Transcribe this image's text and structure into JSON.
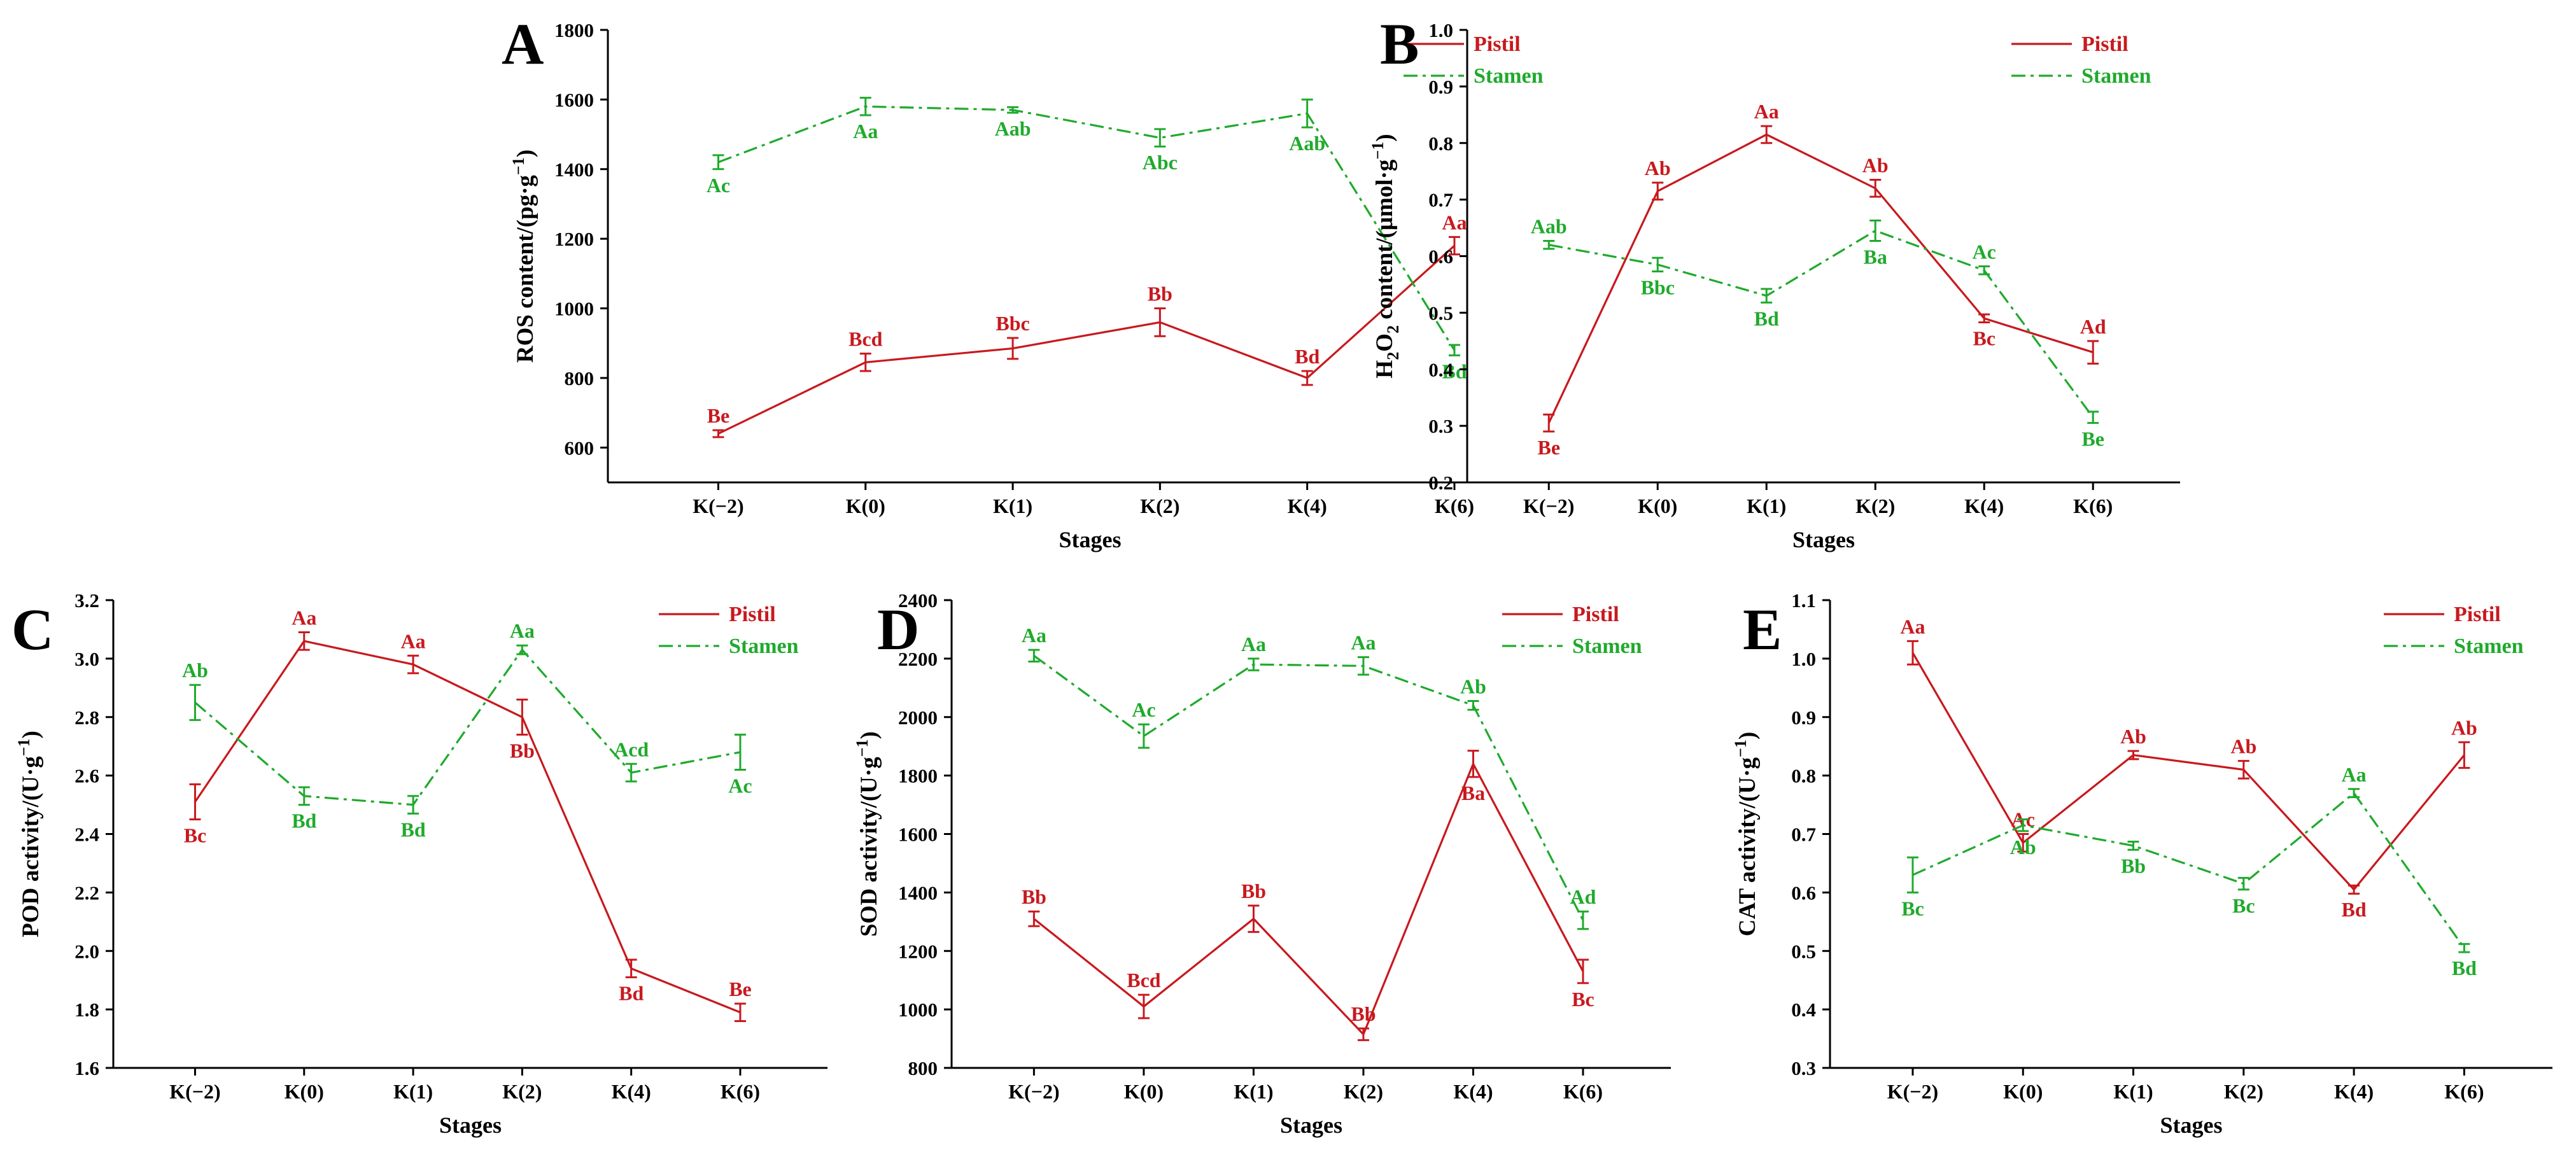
{
  "colors": {
    "pistil": "#c8191e",
    "stamen": "#1faa2c",
    "axis": "#000000"
  },
  "chart_data": [
    {
      "panel": "A",
      "type": "line",
      "categories": [
        "K(−2)",
        "K(0)",
        "K(1)",
        "K(2)",
        "K(4)",
        "K(6)"
      ],
      "xlabel": "Stages",
      "ylabel": "ROS content/(pg·g",
      "ylabel_sup": "−1",
      "ylabel_end": ")",
      "ylim": [
        500,
        1800
      ],
      "yticks": [
        600,
        800,
        1000,
        1200,
        1400,
        1600,
        1800
      ],
      "tick_decimals": 0,
      "legend": "top-right",
      "series": [
        {
          "name": "Pistil",
          "values": [
            640,
            845,
            885,
            960,
            800,
            1180
          ],
          "errors": [
            10,
            25,
            30,
            40,
            20,
            25
          ],
          "labels": [
            "Be",
            "Bcd",
            "Bbc",
            "Bb",
            "Bd",
            "Aa"
          ],
          "label_pos": [
            "above",
            "above",
            "above",
            "above",
            "above",
            "above"
          ]
        },
        {
          "name": "Stamen",
          "values": [
            1420,
            1580,
            1570,
            1490,
            1560,
            880
          ],
          "errors": [
            20,
            25,
            8,
            25,
            40,
            15
          ],
          "labels": [
            "Ac",
            "Aa",
            "Aab",
            "Abc",
            "Aab",
            "Bd"
          ],
          "label_pos": [
            "below",
            "below",
            "below",
            "below",
            "below",
            "below"
          ]
        }
      ]
    },
    {
      "panel": "B",
      "type": "line",
      "categories": [
        "K(−2)",
        "K(0)",
        "K(1)",
        "K(2)",
        "K(4)",
        "K(6)"
      ],
      "xlabel": "Stages",
      "ylabel": "H",
      "ylabel_sub": "2",
      "ylabel_mid": "O",
      "ylabel_sub2": "2",
      "ylabel_rest": " content/(μmol·g",
      "ylabel_sup": "−1",
      "ylabel_end": ")",
      "ylim": [
        0.2,
        1.0
      ],
      "yticks": [
        0.2,
        0.3,
        0.4,
        0.5,
        0.6,
        0.7,
        0.8,
        0.9,
        1.0
      ],
      "tick_decimals": 1,
      "legend": "top-right",
      "series": [
        {
          "name": "Pistil",
          "values": [
            0.305,
            0.715,
            0.815,
            0.72,
            0.49,
            0.43
          ],
          "errors": [
            0.015,
            0.015,
            0.015,
            0.015,
            0.007,
            0.02
          ],
          "labels": [
            "Be",
            "Ab",
            "Aa",
            "Ab",
            "Bc",
            "Ad"
          ],
          "label_pos": [
            "below",
            "above",
            "above",
            "above",
            "below",
            "above"
          ]
        },
        {
          "name": "Stamen",
          "values": [
            0.62,
            0.585,
            0.53,
            0.645,
            0.575,
            0.315
          ],
          "errors": [
            0.007,
            0.012,
            0.012,
            0.018,
            0.007,
            0.01
          ],
          "labels": [
            "Aab",
            "Bbc",
            "Bd",
            "Ba",
            "Ac",
            "Be"
          ],
          "label_pos": [
            "above",
            "below",
            "below",
            "below",
            "above",
            "below"
          ]
        }
      ]
    },
    {
      "panel": "C",
      "type": "line",
      "categories": [
        "K(−2)",
        "K(0)",
        "K(1)",
        "K(2)",
        "K(4)",
        "K(6)"
      ],
      "xlabel": "Stages",
      "ylabel": "POD activity/(U·g",
      "ylabel_sup": "−1",
      "ylabel_end": ")",
      "ylim": [
        1.6,
        3.2
      ],
      "yticks": [
        1.6,
        1.8,
        2.0,
        2.2,
        2.4,
        2.6,
        2.8,
        3.0,
        3.2
      ],
      "tick_decimals": 1,
      "legend": "top-right",
      "series": [
        {
          "name": "Pistil",
          "values": [
            2.51,
            3.06,
            2.98,
            2.8,
            1.94,
            1.79
          ],
          "errors": [
            0.06,
            0.03,
            0.03,
            0.06,
            0.03,
            0.03
          ],
          "labels": [
            "Bc",
            "Aa",
            "Aa",
            "Bb",
            "Bd",
            "Be"
          ],
          "label_pos": [
            "below",
            "above",
            "above",
            "below",
            "below",
            "above"
          ]
        },
        {
          "name": "Stamen",
          "values": [
            2.85,
            2.53,
            2.5,
            3.03,
            2.61,
            2.68
          ],
          "errors": [
            0.06,
            0.03,
            0.03,
            0.015,
            0.03,
            0.06
          ],
          "labels": [
            "Ab",
            "Bd",
            "Bd",
            "Aa",
            "Acd",
            "Ac"
          ],
          "label_pos": [
            "above",
            "below",
            "below",
            "above",
            "above",
            "below"
          ]
        }
      ]
    },
    {
      "panel": "D",
      "type": "line",
      "categories": [
        "K(−2)",
        "K(0)",
        "K(1)",
        "K(2)",
        "K(4)",
        "K(6)"
      ],
      "xlabel": "Stages",
      "ylabel": "SOD activity/(U·g",
      "ylabel_sup": "−1",
      "ylabel_end": ")",
      "ylim": [
        800,
        2400
      ],
      "yticks": [
        800,
        1000,
        1200,
        1400,
        1600,
        1800,
        2000,
        2200,
        2400
      ],
      "tick_decimals": 0,
      "legend": "top-right",
      "series": [
        {
          "name": "Pistil",
          "values": [
            1310,
            1010,
            1310,
            915,
            1840,
            1130
          ],
          "errors": [
            25,
            40,
            45,
            20,
            45,
            40
          ],
          "labels": [
            "Bb",
            "Bcd",
            "Bb",
            "Bb",
            "Ba",
            "Bc"
          ],
          "label_pos": [
            "above",
            "above",
            "above",
            "above",
            "below",
            "below"
          ]
        },
        {
          "name": "Stamen",
          "values": [
            2210,
            1935,
            2180,
            2175,
            2040,
            1305
          ],
          "errors": [
            20,
            40,
            20,
            30,
            15,
            30
          ],
          "labels": [
            "Aa",
            "Ac",
            "Aa",
            "Aa",
            "Ab",
            "Ad"
          ],
          "label_pos": [
            "above",
            "above",
            "above",
            "above",
            "above",
            "above"
          ]
        }
      ]
    },
    {
      "panel": "E",
      "type": "line",
      "categories": [
        "K(−2)",
        "K(0)",
        "K(1)",
        "K(2)",
        "K(4)",
        "K(6)"
      ],
      "xlabel": "Stages",
      "ylabel": "CAT activity/(U·g",
      "ylabel_sup": "−1",
      "ylabel_end": ")",
      "ylim": [
        0.3,
        1.1
      ],
      "yticks": [
        0.3,
        0.4,
        0.5,
        0.6,
        0.7,
        0.8,
        0.9,
        1.0,
        1.1
      ],
      "tick_decimals": 1,
      "legend": "top-right",
      "series": [
        {
          "name": "Pistil",
          "values": [
            1.01,
            0.685,
            0.835,
            0.81,
            0.605,
            0.835
          ],
          "errors": [
            0.02,
            0.015,
            0.007,
            0.015,
            0.007,
            0.022
          ],
          "labels": [
            "Aa",
            "Ac",
            "Ab",
            "Ab",
            "Bd",
            "Ab"
          ],
          "label_pos": [
            "above",
            "above",
            "above",
            "above",
            "below",
            "above"
          ]
        },
        {
          "name": "Stamen",
          "values": [
            0.63,
            0.715,
            0.68,
            0.615,
            0.77,
            0.505
          ],
          "errors": [
            0.03,
            0.01,
            0.007,
            0.01,
            0.007,
            0.007
          ],
          "labels": [
            "Bc",
            "Ab",
            "Bb",
            "Bc",
            "Aa",
            "Bd"
          ],
          "label_pos": [
            "below",
            "below",
            "below",
            "below",
            "above",
            "below"
          ]
        }
      ]
    }
  ]
}
